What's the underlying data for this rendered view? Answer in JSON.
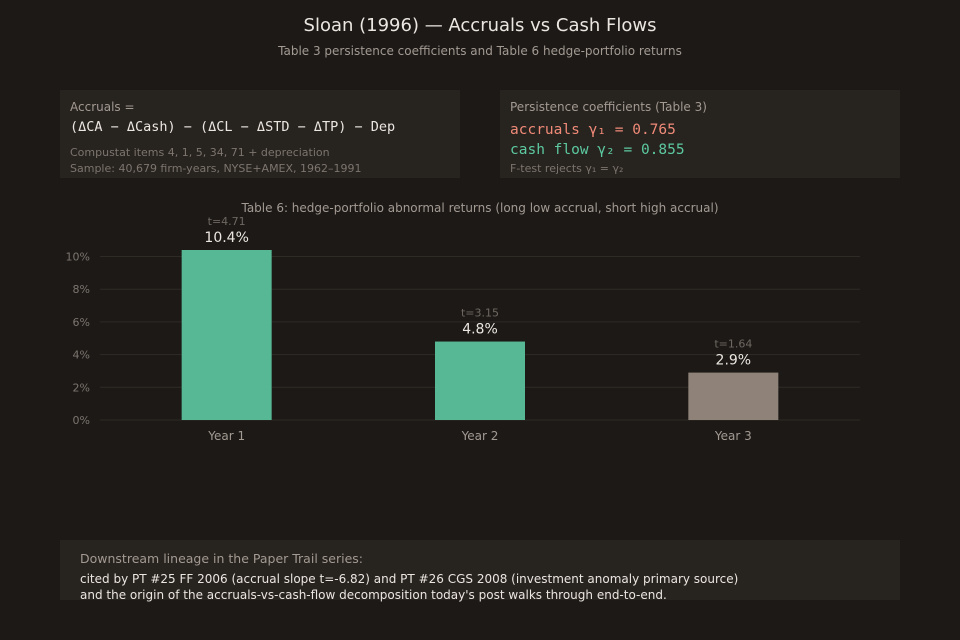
{
  "header": {
    "title": "Sloan (1996) — Accruals vs Cash Flows",
    "subtitle": "Table 3 persistence coefficients and Table 6 hedge-portfolio returns"
  },
  "accruals_panel": {
    "label": "Accruals =",
    "formula": "(ΔCA − ΔCash) − (ΔCL − ΔSTD − ΔTP) − Dep",
    "note1": "Compustat items 4, 1, 5, 34, 71 + depreciation",
    "note2": "Sample: 40,679 firm-years, NYSE+AMEX, 1962–1991"
  },
  "persistence_panel": {
    "label": "Persistence coefficients (Table 3)",
    "accruals_line": "accruals γ₁ = 0.765",
    "cashflow_line": "cash flow γ₂ = 0.855",
    "note": "F-test rejects γ₁ = γ₂",
    "accruals_color": "#f08a78",
    "cashflow_color": "#5cc9a0"
  },
  "chart_data": {
    "type": "bar",
    "title": "Table 6: hedge-portfolio abnormal returns (long low accrual, short high accrual)",
    "categories": [
      "Year 1",
      "Year 2",
      "Year 3"
    ],
    "values": [
      10.4,
      4.8,
      2.9
    ],
    "value_labels": [
      "10.4%",
      "4.8%",
      "2.9%"
    ],
    "t_stats": [
      "t=4.71",
      "t=3.15",
      "t=1.64"
    ],
    "bar_colors": [
      "#57b895",
      "#57b895",
      "#8f8379"
    ],
    "ylim": [
      0,
      10.4
    ],
    "yticks": [
      0,
      2,
      4,
      6,
      8,
      10
    ],
    "ytick_labels": [
      "0%",
      "2%",
      "4%",
      "6%",
      "8%",
      "10%"
    ],
    "xlabel": "",
    "ylabel": "",
    "grid": true
  },
  "lineage": {
    "heading": "Downstream lineage in the Paper Trail series:",
    "line1": "cited by PT #25 FF 2006 (accrual slope t=-6.82) and PT #26 CGS 2008 (investment anomaly primary source)",
    "line2": "and the origin of the accruals-vs-cash-flow decomposition today's post walks through end-to-end."
  }
}
